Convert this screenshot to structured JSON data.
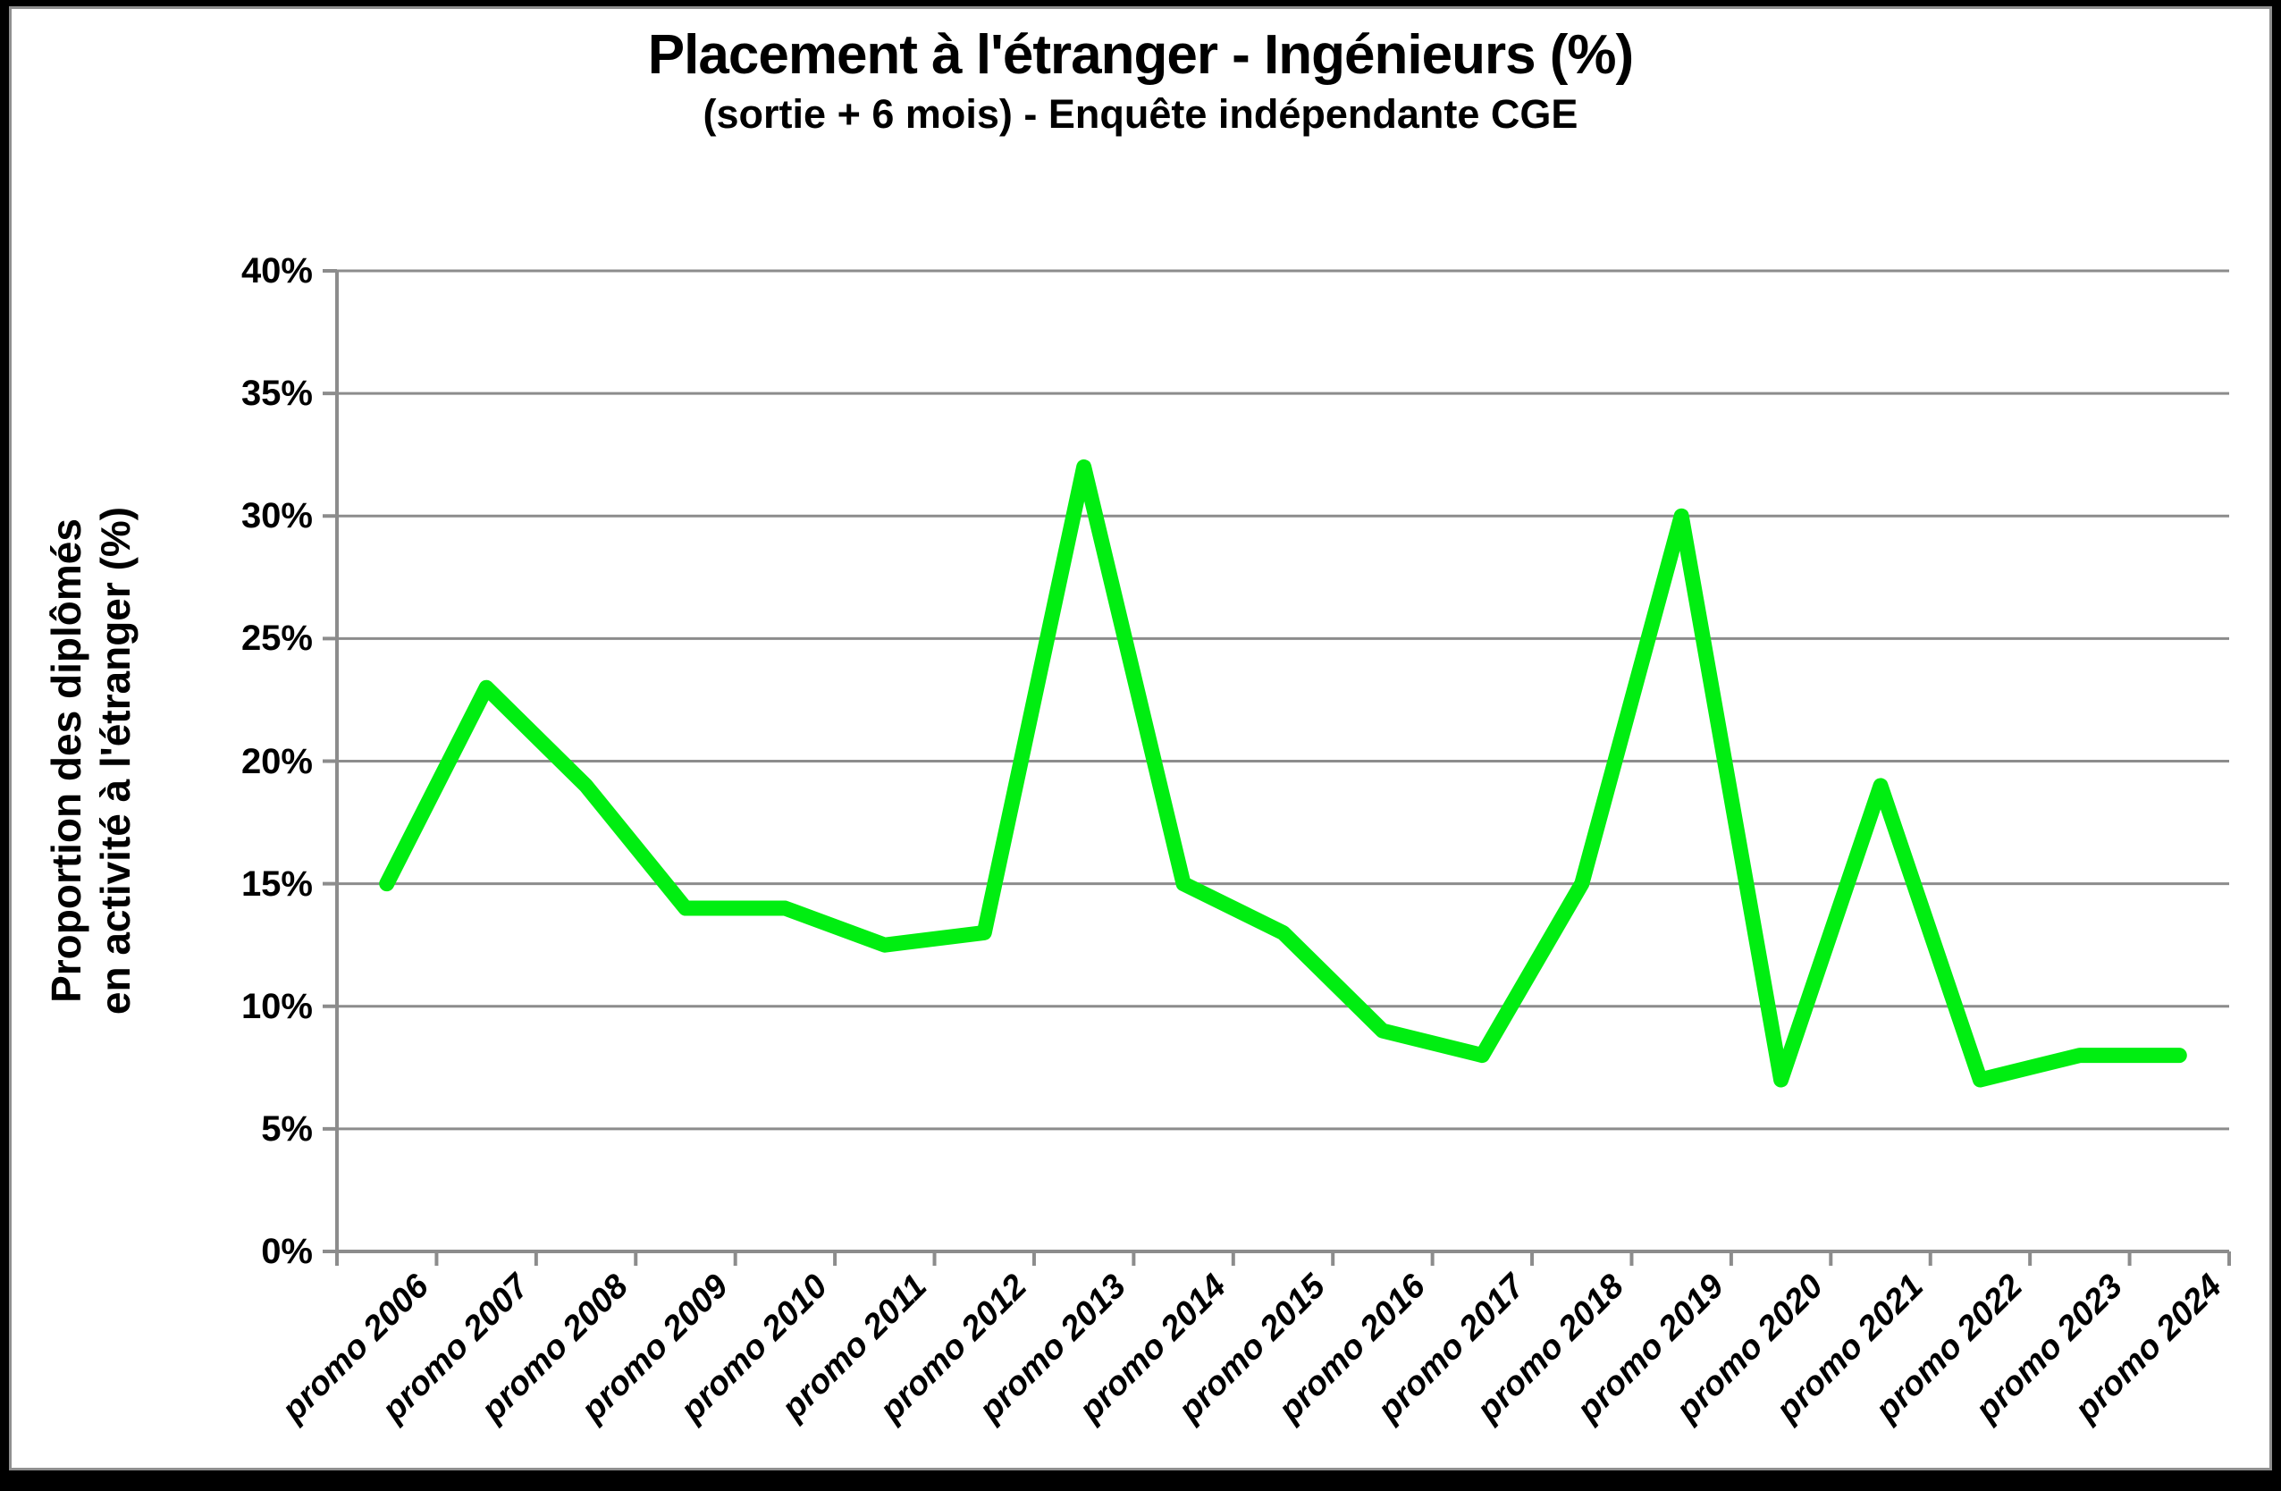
{
  "colors": {
    "line": "#00EE11",
    "grid": "#8C8C8C",
    "axis": "#8C8C8C",
    "text": "#000000",
    "chart_background": "#FFFFFF",
    "frame": "#000000"
  },
  "chart_data": {
    "type": "line",
    "title": "Placement à l'étranger - Ingénieurs (%)",
    "subtitle": "(sortie + 6 mois) - Enquête indépendante CGE",
    "ylabel_lines": [
      "Proportion des diplômés",
      "en activité à l'étranger (%)"
    ],
    "xlabel": "",
    "categories": [
      "promo 2006",
      "promo 2007",
      "promo 2008",
      "promo 2009",
      "promo 2010",
      "promo 2011",
      "promo 2012",
      "promo 2013",
      "promo 2014",
      "promo 2015",
      "promo 2016",
      "promo 2017",
      "promo 2018",
      "promo 2019",
      "promo 2020",
      "promo 2021",
      "promo 2022",
      "promo 2023",
      "promo 2024"
    ],
    "values": [
      15,
      23,
      19,
      14,
      14,
      12.5,
      13,
      32,
      15,
      13,
      9,
      8,
      15,
      30,
      7,
      19,
      7,
      8,
      8
    ],
    "ylim": [
      0,
      40
    ],
    "y_tick_step": 5,
    "y_tick_labels": [
      "40%",
      "35%",
      "30%",
      "25%",
      "20%",
      "15%",
      "10%",
      "5%",
      "0%"
    ],
    "grid": "horizontal",
    "legend": "none",
    "line_color": "#00EE11"
  }
}
